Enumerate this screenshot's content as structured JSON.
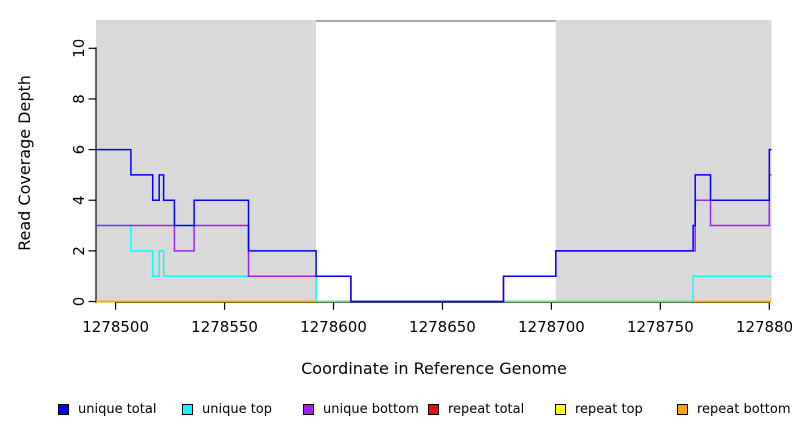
{
  "figure": {
    "kind": "R step plot of read coverage depth"
  },
  "chart_data": {
    "type": "line",
    "subtype": "step-after",
    "title": "",
    "xlabel": "Coordinate in Reference Genome",
    "ylabel": "Read Coverage Depth",
    "xlim": [
      1278491,
      1278801
    ],
    "ylim": [
      0,
      11.12
    ],
    "xticks": [
      1278500,
      1278550,
      1278600,
      1278650,
      1278700,
      1278750,
      1278800
    ],
    "yticks": [
      0,
      2,
      4,
      6,
      8,
      10
    ],
    "grid": false,
    "legend_position": "bottom",
    "axis_color": "#000000",
    "shaded_regions": [
      {
        "from": 1278491,
        "to": 1278592,
        "color": "#D9D9D9"
      },
      {
        "from": 1278702,
        "to": 1278801,
        "color": "#D9D9D9"
      }
    ],
    "gap_top_border": {
      "from": 1278592,
      "to": 1278702,
      "color": "#8C8C8C"
    },
    "draw_order": [
      "repeat total",
      "repeat top",
      "repeat bottom",
      "unique top",
      "unique bottom",
      "unique total"
    ],
    "series": [
      {
        "name": "unique total",
        "color": "#0000FF",
        "points": [
          [
            1278491,
            6
          ],
          [
            1278507,
            5
          ],
          [
            1278517,
            4
          ],
          [
            1278520,
            5
          ],
          [
            1278522,
            4
          ],
          [
            1278527,
            3
          ],
          [
            1278536,
            4
          ],
          [
            1278561,
            2
          ],
          [
            1278592,
            1
          ],
          [
            1278608,
            0
          ],
          [
            1278678,
            1
          ],
          [
            1278702,
            2
          ],
          [
            1278765,
            3
          ],
          [
            1278766,
            5
          ],
          [
            1278773,
            4
          ],
          [
            1278800,
            6
          ],
          [
            1278801,
            6
          ]
        ]
      },
      {
        "name": "unique top",
        "color": "#00FFFF",
        "points": [
          [
            1278491,
            3
          ],
          [
            1278507,
            2
          ],
          [
            1278517,
            1
          ],
          [
            1278520,
            2
          ],
          [
            1278522,
            1
          ],
          [
            1278592,
            0
          ],
          [
            1278765,
            1
          ],
          [
            1278801,
            1
          ]
        ]
      },
      {
        "name": "unique bottom",
        "color": "#A020F0",
        "points": [
          [
            1278491,
            3
          ],
          [
            1278527,
            2
          ],
          [
            1278536,
            3
          ],
          [
            1278561,
            1
          ],
          [
            1278608,
            0
          ],
          [
            1278678,
            1
          ],
          [
            1278702,
            2
          ],
          [
            1278766,
            4
          ],
          [
            1278773,
            3
          ],
          [
            1278800,
            5
          ],
          [
            1278801,
            5
          ]
        ]
      },
      {
        "name": "repeat total",
        "color": "#FF0000",
        "points": [
          [
            1278491,
            0
          ],
          [
            1278801,
            0
          ]
        ]
      },
      {
        "name": "repeat top",
        "color": "#FFFF00",
        "points": [
          [
            1278491,
            0
          ],
          [
            1278801,
            0
          ]
        ]
      },
      {
        "name": "repeat bottom",
        "color": "#FFA500",
        "points": [
          [
            1278491,
            0
          ],
          [
            1278801,
            0
          ]
        ]
      }
    ]
  }
}
